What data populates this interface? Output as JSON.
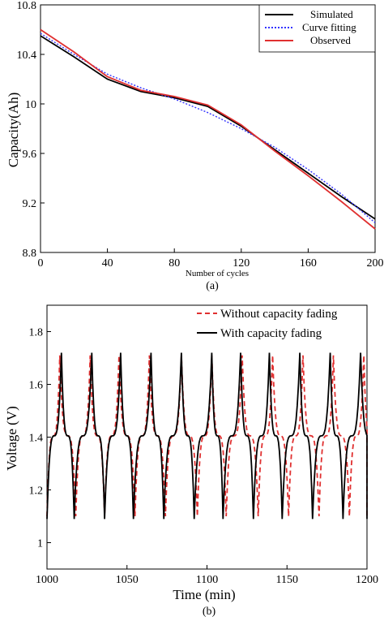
{
  "chart_data": [
    {
      "type": "line",
      "caption": "(a)",
      "xlabel": "Number of cycles",
      "ylabel": "Capacity(Ah)",
      "xlim": [
        0,
        200
      ],
      "ylim": [
        8.8,
        10.8
      ],
      "xticks": [
        0,
        40,
        80,
        120,
        160,
        200
      ],
      "yticks": [
        8.8,
        9.2,
        9.6,
        10,
        10.4,
        10.8
      ],
      "legend_position": "top-right",
      "series": [
        {
          "name": "Simulated",
          "color": "#000000",
          "style": "solid",
          "x": [
            0,
            20,
            40,
            60,
            80,
            100,
            120,
            140,
            160,
            180,
            200
          ],
          "y": [
            10.55,
            10.38,
            10.2,
            10.1,
            10.05,
            9.98,
            9.82,
            9.63,
            9.44,
            9.25,
            9.07
          ]
        },
        {
          "name": "Curve fitting",
          "color": "#3333ff",
          "style": "dotted",
          "x": [
            0,
            20,
            40,
            60,
            80,
            100,
            120,
            140,
            160,
            180,
            200
          ],
          "y": [
            10.57,
            10.4,
            10.24,
            10.13,
            10.04,
            9.93,
            9.8,
            9.65,
            9.47,
            9.27,
            9.04
          ]
        },
        {
          "name": "Observed",
          "color": "#e03030",
          "style": "solid",
          "x": [
            0,
            20,
            40,
            60,
            80,
            100,
            120,
            140,
            160,
            180,
            200
          ],
          "y": [
            10.6,
            10.42,
            10.22,
            10.11,
            10.06,
            9.99,
            9.83,
            9.62,
            9.42,
            9.21,
            8.99
          ]
        }
      ]
    },
    {
      "type": "line",
      "caption": "(b)",
      "xlabel": "Time (min)",
      "ylabel": "Voltage (V)",
      "xlim": [
        1000,
        1200
      ],
      "ylim": [
        0.9,
        1.9
      ],
      "xticks": [
        1000,
        1050,
        1100,
        1150,
        1200
      ],
      "yticks": [
        1,
        1.2,
        1.4,
        1.6,
        1.8
      ],
      "legend_position": "top-right",
      "series": [
        {
          "name": "Without capacity fading",
          "color": "#e03030",
          "style": "dashed",
          "troughs": [
            1000,
            1018,
            1036,
            1055,
            1074,
            1094,
            1112,
            1132,
            1151,
            1170,
            1189
          ],
          "peaks": [
            1008,
            1027,
            1045,
            1064,
            1084,
            1103,
            1122,
            1141,
            1160,
            1179,
            1198
          ],
          "min_voltage": 1.1,
          "max_voltage": 1.71
        },
        {
          "name": "With capacity fading",
          "color": "#000000",
          "style": "solid",
          "troughs": [
            1000,
            1017,
            1036,
            1054,
            1073,
            1092,
            1110,
            1129,
            1147,
            1166,
            1185
          ],
          "peaks": [
            1009,
            1028,
            1046,
            1065,
            1084,
            1103,
            1121,
            1139,
            1158,
            1177,
            1196
          ],
          "min_voltage": 1.09,
          "max_voltage": 1.72
        }
      ]
    }
  ]
}
